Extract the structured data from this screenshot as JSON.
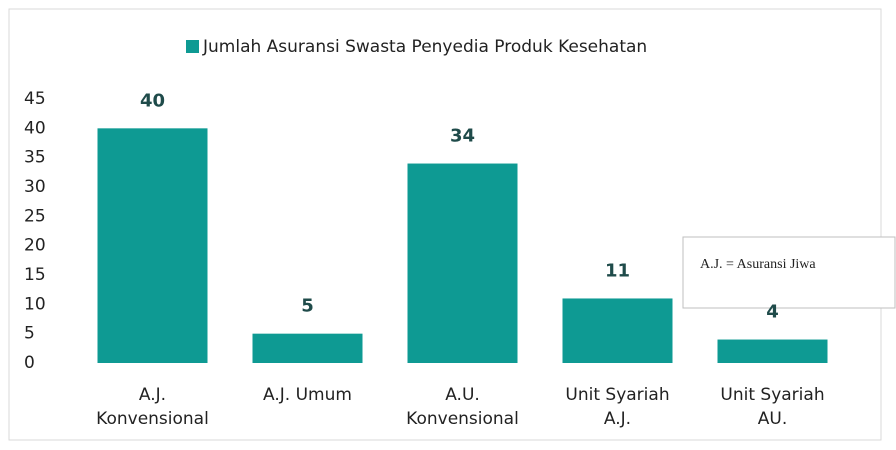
{
  "chart_data": {
    "type": "bar",
    "legend": "Jumlah Asuransi Swasta Penyedia Produk Kesehatan",
    "categories": [
      "A.J. Konvensional",
      "A.J. Umum",
      "A.U. Konvensional",
      "Unit Syariah A.J.",
      "Unit Syariah AU."
    ],
    "values": [
      40,
      5,
      34,
      11,
      4
    ],
    "color": "#0e9a93",
    "ylim": [
      0,
      45
    ],
    "yticks": [
      0,
      5,
      10,
      15,
      20,
      25,
      30,
      35,
      40,
      45
    ],
    "grid": false,
    "annotation": "A.J. = Asuransi Jiwa"
  }
}
